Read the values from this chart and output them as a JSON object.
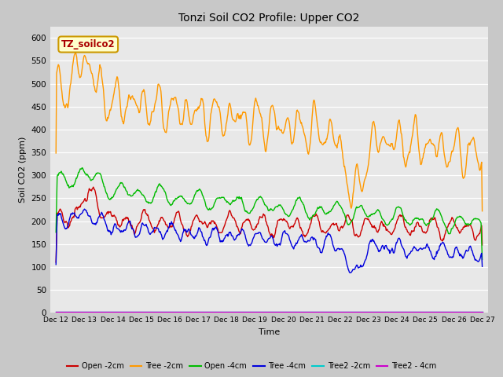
{
  "title": "Tonzi Soil CO2 Profile: Upper CO2",
  "xlabel": "Time",
  "ylabel": "Soil CO2 (ppm)",
  "ylim": [
    0,
    625
  ],
  "yticks": [
    0,
    50,
    100,
    150,
    200,
    250,
    300,
    350,
    400,
    450,
    500,
    550,
    600
  ],
  "fig_facecolor": "#c8c8c8",
  "ax_facecolor": "#e8e8e8",
  "legend_label": "TZ_soilco2",
  "series": {
    "open_2cm": {
      "color": "#cc0000",
      "label": "Open -2cm",
      "lw": 1.0
    },
    "tree_2cm": {
      "color": "#ff9900",
      "label": "Tree -2cm",
      "lw": 1.0
    },
    "open_4cm": {
      "color": "#00bb00",
      "label": "Open -4cm",
      "lw": 1.0
    },
    "tree_4cm": {
      "color": "#0000dd",
      "label": "Tree -4cm",
      "lw": 1.0
    },
    "tree2_2cm": {
      "color": "#00cccc",
      "label": "Tree2 -2cm",
      "lw": 1.0
    },
    "tree2_4cm": {
      "color": "#cc00cc",
      "label": "Tree2 - 4cm",
      "lw": 1.0
    }
  },
  "xtick_labels": [
    "Dec 12",
    "Dec 13",
    "Dec 14",
    "Dec 15",
    "Dec 16",
    "Dec 17",
    "Dec 18",
    "Dec 19",
    "Dec 20",
    "Dec 21",
    "Dec 22",
    "Dec 23",
    "Dec 24",
    "Dec 25",
    "Dec 26",
    "Dec 27"
  ],
  "n_points": 720
}
